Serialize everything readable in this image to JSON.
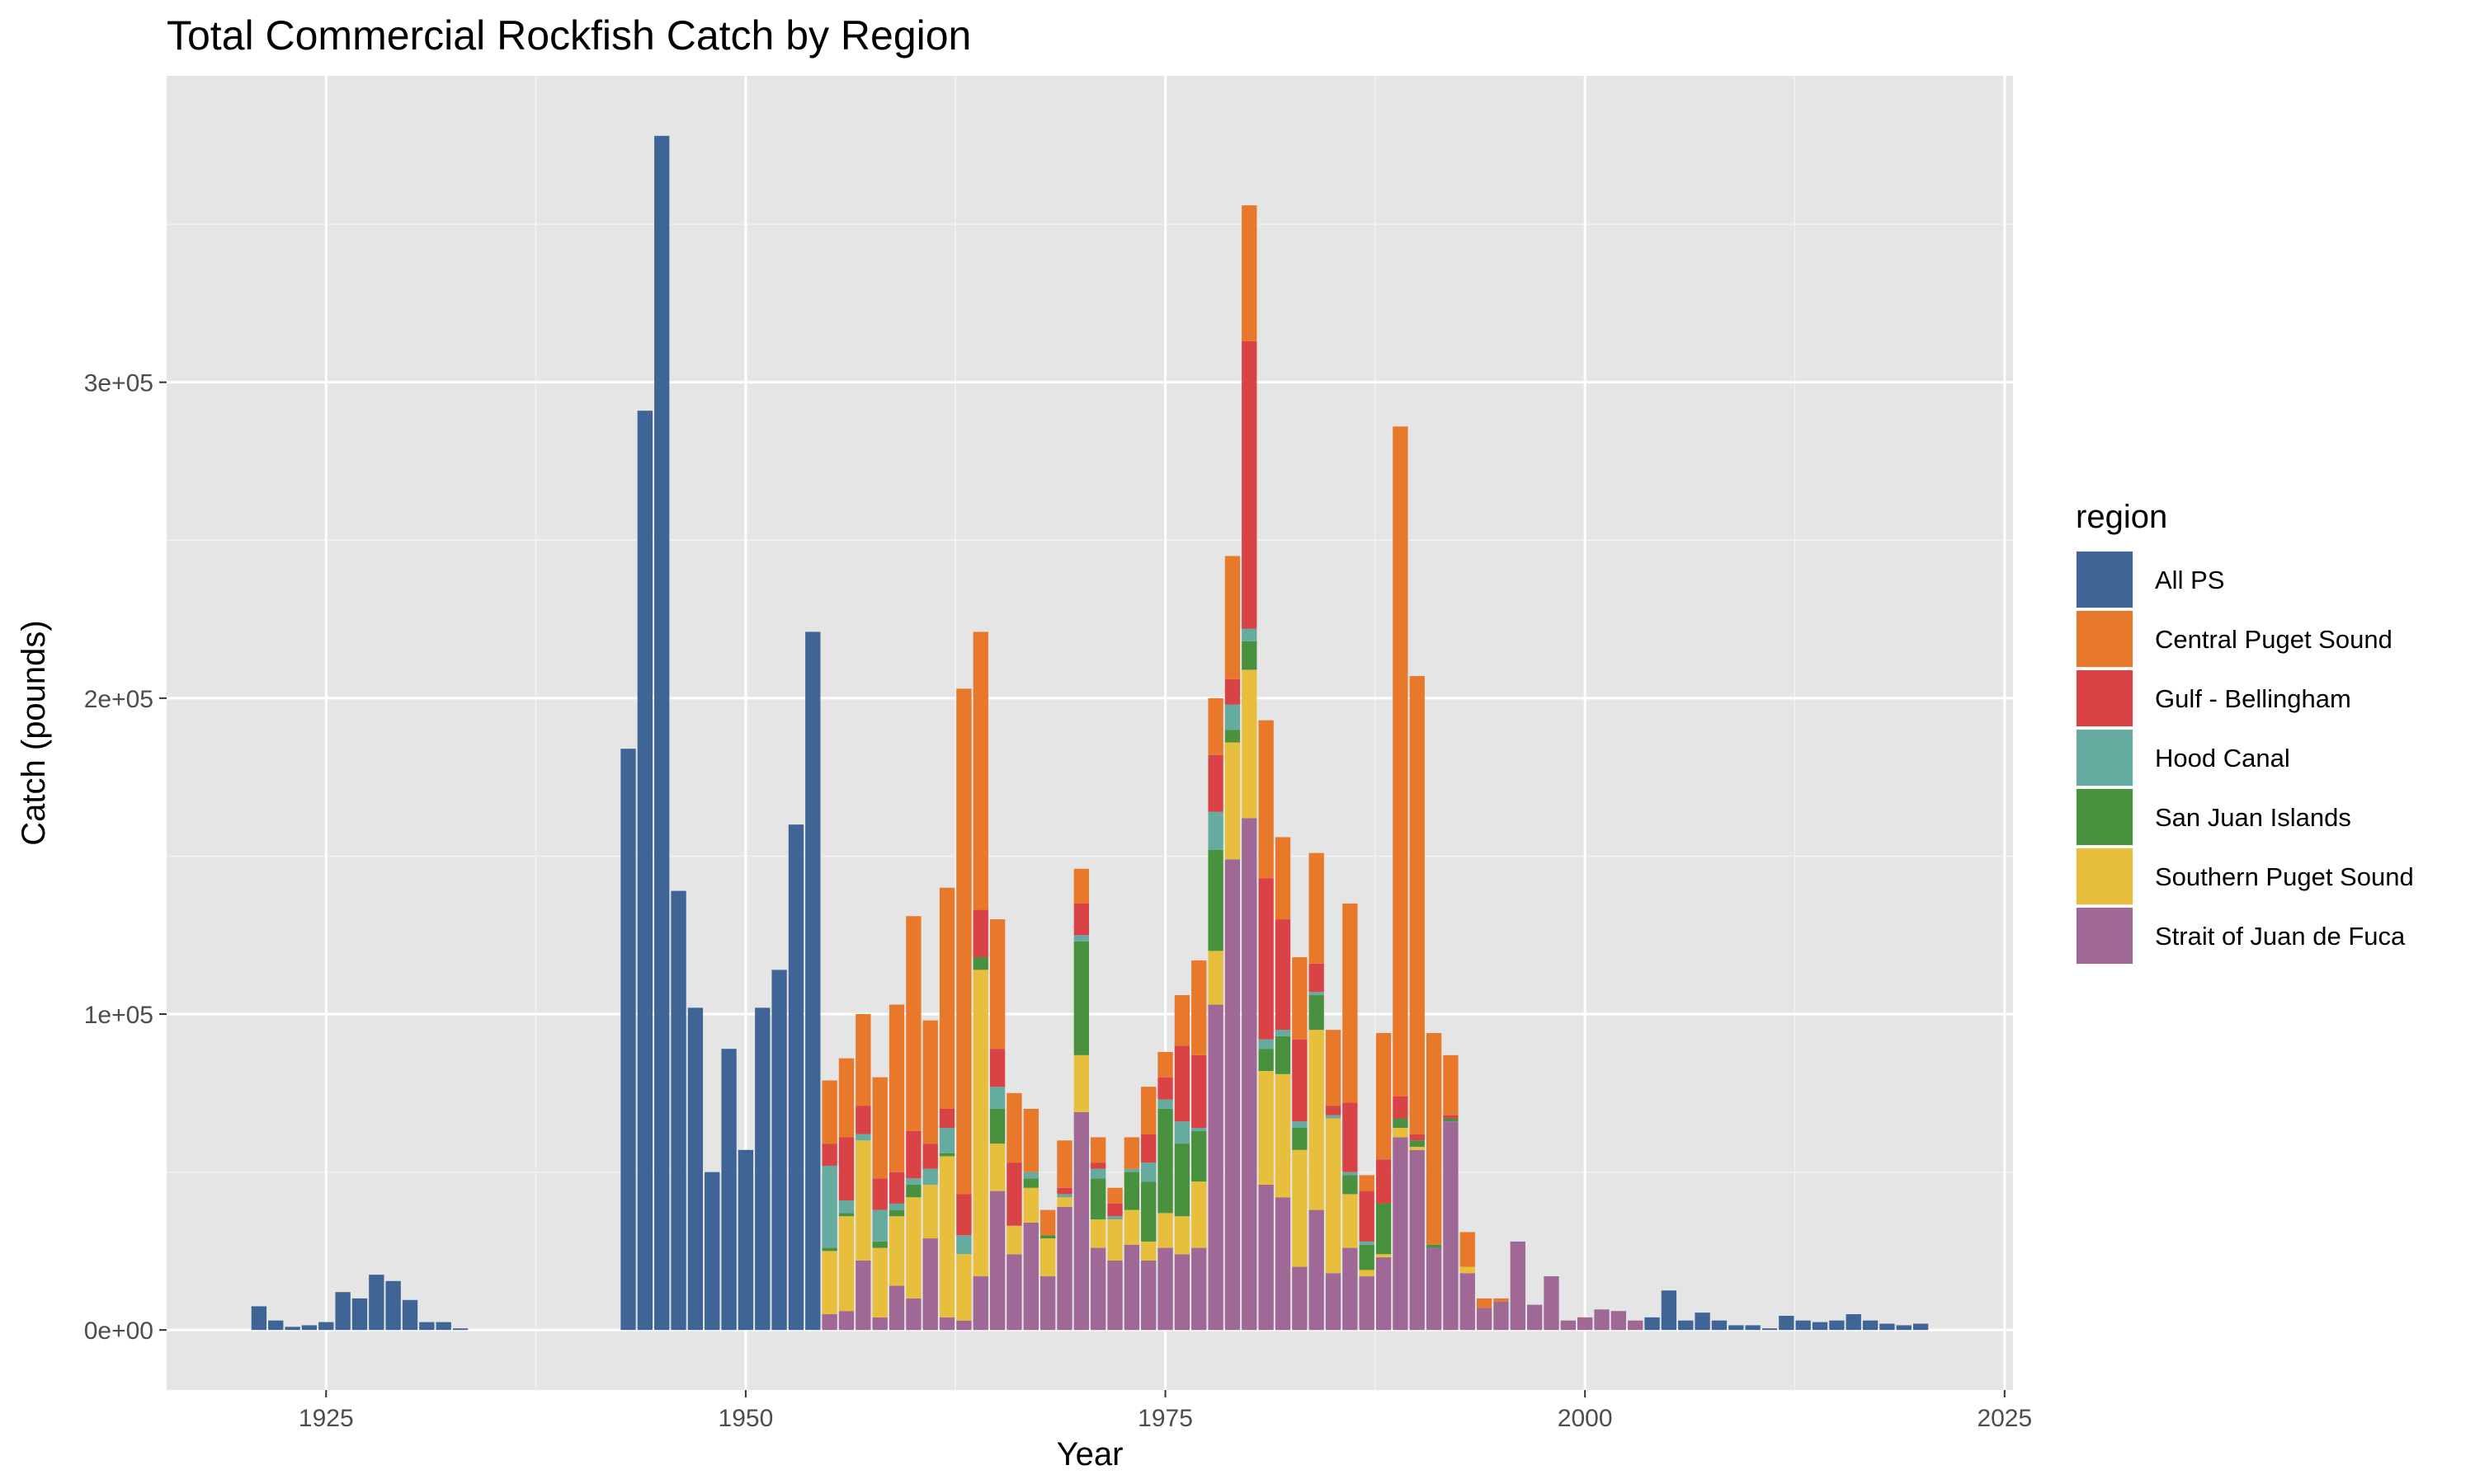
{
  "chart_data": {
    "type": "bar",
    "stacked": true,
    "title": "Total Commercial Rockfish Catch by Region",
    "xlabel": "Year",
    "ylabel": "Catch (pounds)",
    "xlim": [
      1915.5,
      2025.5
    ],
    "ylim": [
      -19000,
      397000
    ],
    "x_ticks": [
      {
        "value": 1925,
        "label": "1925"
      },
      {
        "value": 1950,
        "label": "1950"
      },
      {
        "value": 1975,
        "label": "1975"
      },
      {
        "value": 2000,
        "label": "2000"
      },
      {
        "value": 2025,
        "label": "2025"
      }
    ],
    "y_ticks": [
      {
        "value": 0,
        "label": "0e+00"
      },
      {
        "value": 100000,
        "label": "1e+05"
      },
      {
        "value": 200000,
        "label": "2e+05"
      },
      {
        "value": 300000,
        "label": "3e+05"
      }
    ],
    "grid": true,
    "legend": {
      "title": "region",
      "position": "right"
    },
    "series": [
      {
        "name": "All PS",
        "color": "#3f6496",
        "data": [
          [
            1921,
            7500
          ],
          [
            1922,
            3000
          ],
          [
            1923,
            1000
          ],
          [
            1924,
            1500
          ],
          [
            1925,
            2500
          ],
          [
            1926,
            12000
          ],
          [
            1927,
            10000
          ],
          [
            1928,
            17500
          ],
          [
            1929,
            15500
          ],
          [
            1930,
            9500
          ],
          [
            1931,
            2500
          ],
          [
            1932,
            2500
          ],
          [
            1933,
            500
          ],
          [
            1943,
            184000
          ],
          [
            1944,
            291000
          ],
          [
            1945,
            378000
          ],
          [
            1946,
            139000
          ],
          [
            1947,
            102000
          ],
          [
            1948,
            50000
          ],
          [
            1949,
            89000
          ],
          [
            1950,
            57000
          ],
          [
            1951,
            102000
          ],
          [
            1952,
            114000
          ],
          [
            1953,
            160000
          ],
          [
            1954,
            221000
          ],
          [
            2004,
            4000
          ],
          [
            2005,
            12500
          ],
          [
            2006,
            3000
          ],
          [
            2007,
            5500
          ],
          [
            2008,
            3000
          ],
          [
            2009,
            1500
          ],
          [
            2010,
            1500
          ],
          [
            2011,
            500
          ],
          [
            2012,
            4500
          ],
          [
            2013,
            3000
          ],
          [
            2014,
            2500
          ],
          [
            2015,
            3000
          ],
          [
            2016,
            5000
          ],
          [
            2017,
            3000
          ],
          [
            2018,
            2000
          ],
          [
            2019,
            1500
          ],
          [
            2020,
            2000
          ]
        ]
      },
      {
        "name": "Central Puget Sound",
        "color": "#e8782a",
        "data": [
          [
            1955,
            20000
          ],
          [
            1956,
            25000
          ],
          [
            1957,
            29000
          ],
          [
            1958,
            32000
          ],
          [
            1959,
            53000
          ],
          [
            1960,
            68000
          ],
          [
            1961,
            39000
          ],
          [
            1962,
            70000
          ],
          [
            1963,
            160000
          ],
          [
            1964,
            88000
          ],
          [
            1965,
            41000
          ],
          [
            1966,
            22000
          ],
          [
            1967,
            20000
          ],
          [
            1968,
            8000
          ],
          [
            1969,
            15000
          ],
          [
            1970,
            11000
          ],
          [
            1971,
            8000
          ],
          [
            1972,
            5000
          ],
          [
            1973,
            10000
          ],
          [
            1974,
            15000
          ],
          [
            1975,
            8000
          ],
          [
            1976,
            16000
          ],
          [
            1977,
            30000
          ],
          [
            1978,
            18000
          ],
          [
            1979,
            39000
          ],
          [
            1980,
            43000
          ],
          [
            1981,
            50000
          ],
          [
            1982,
            26000
          ],
          [
            1983,
            26000
          ],
          [
            1984,
            35000
          ],
          [
            1985,
            24000
          ],
          [
            1986,
            63000
          ],
          [
            1987,
            5000
          ],
          [
            1988,
            40000
          ],
          [
            1989,
            212000
          ],
          [
            1990,
            145000
          ],
          [
            1991,
            67000
          ],
          [
            1992,
            19000
          ],
          [
            1993,
            11000
          ],
          [
            1994,
            3000
          ],
          [
            1995,
            1000
          ]
        ]
      },
      {
        "name": "Gulf - Bellingham",
        "color": "#d94345",
        "data": [
          [
            1955,
            7000
          ],
          [
            1956,
            20000
          ],
          [
            1957,
            9000
          ],
          [
            1958,
            10000
          ],
          [
            1959,
            10000
          ],
          [
            1960,
            15000
          ],
          [
            1961,
            8000
          ],
          [
            1962,
            6000
          ],
          [
            1963,
            13000
          ],
          [
            1964,
            15000
          ],
          [
            1965,
            12000
          ],
          [
            1966,
            20000
          ],
          [
            1967,
            0
          ],
          [
            1968,
            0
          ],
          [
            1969,
            2000
          ],
          [
            1970,
            10000
          ],
          [
            1971,
            2000
          ],
          [
            1972,
            4000
          ],
          [
            1973,
            0
          ],
          [
            1974,
            9000
          ],
          [
            1975,
            7000
          ],
          [
            1976,
            24000
          ],
          [
            1977,
            23000
          ],
          [
            1978,
            18000
          ],
          [
            1979,
            8000
          ],
          [
            1980,
            91000
          ],
          [
            1981,
            51000
          ],
          [
            1982,
            35000
          ],
          [
            1983,
            26000
          ],
          [
            1984,
            9000
          ],
          [
            1985,
            3000
          ],
          [
            1986,
            22000
          ],
          [
            1987,
            16000
          ],
          [
            1988,
            14000
          ],
          [
            1989,
            7000
          ],
          [
            1990,
            2000
          ],
          [
            1992,
            1000
          ]
        ]
      },
      {
        "name": "Hood Canal",
        "color": "#66aba0",
        "data": [
          [
            1955,
            26000
          ],
          [
            1956,
            4000
          ],
          [
            1957,
            2000
          ],
          [
            1958,
            10000
          ],
          [
            1959,
            2000
          ],
          [
            1960,
            2000
          ],
          [
            1961,
            5000
          ],
          [
            1962,
            8000
          ],
          [
            1963,
            6000
          ],
          [
            1964,
            0
          ],
          [
            1965,
            7000
          ],
          [
            1966,
            0
          ],
          [
            1967,
            2000
          ],
          [
            1969,
            1000
          ],
          [
            1970,
            2000
          ],
          [
            1971,
            3000
          ],
          [
            1972,
            1000
          ],
          [
            1973,
            1000
          ],
          [
            1974,
            6000
          ],
          [
            1975,
            3000
          ],
          [
            1976,
            7000
          ],
          [
            1977,
            1000
          ],
          [
            1978,
            12000
          ],
          [
            1979,
            8000
          ],
          [
            1980,
            4000
          ],
          [
            1981,
            3000
          ],
          [
            1982,
            2000
          ],
          [
            1983,
            2000
          ],
          [
            1984,
            1000
          ],
          [
            1985,
            1000
          ],
          [
            1986,
            1000
          ],
          [
            1987,
            1000
          ]
        ]
      },
      {
        "name": "San Juan Islands",
        "color": "#4a913f",
        "data": [
          [
            1955,
            1000
          ],
          [
            1956,
            1000
          ],
          [
            1957,
            0
          ],
          [
            1958,
            2000
          ],
          [
            1959,
            2000
          ],
          [
            1960,
            4000
          ],
          [
            1961,
            0
          ],
          [
            1962,
            1000
          ],
          [
            1963,
            0
          ],
          [
            1964,
            4000
          ],
          [
            1965,
            11000
          ],
          [
            1966,
            0
          ],
          [
            1967,
            3000
          ],
          [
            1968,
            1000
          ],
          [
            1970,
            36000
          ],
          [
            1971,
            13000
          ],
          [
            1972,
            0
          ],
          [
            1973,
            12000
          ],
          [
            1974,
            19000
          ],
          [
            1975,
            33000
          ],
          [
            1976,
            23000
          ],
          [
            1977,
            16000
          ],
          [
            1978,
            32000
          ],
          [
            1979,
            4000
          ],
          [
            1980,
            9000
          ],
          [
            1981,
            7000
          ],
          [
            1982,
            12000
          ],
          [
            1983,
            7000
          ],
          [
            1984,
            11000
          ],
          [
            1985,
            0
          ],
          [
            1986,
            6000
          ],
          [
            1987,
            8000
          ],
          [
            1988,
            16000
          ],
          [
            1989,
            3000
          ],
          [
            1990,
            2000
          ],
          [
            1991,
            1000
          ],
          [
            1992,
            1000
          ]
        ]
      },
      {
        "name": "Southern Puget Sound",
        "color": "#e8bf3d",
        "data": [
          [
            1955,
            20000
          ],
          [
            1956,
            30000
          ],
          [
            1957,
            38000
          ],
          [
            1958,
            22000
          ],
          [
            1959,
            22000
          ],
          [
            1960,
            32000
          ],
          [
            1961,
            17000
          ],
          [
            1962,
            51000
          ],
          [
            1963,
            21000
          ],
          [
            1964,
            97000
          ],
          [
            1965,
            15000
          ],
          [
            1966,
            9000
          ],
          [
            1967,
            11000
          ],
          [
            1968,
            12000
          ],
          [
            1969,
            3000
          ],
          [
            1970,
            18000
          ],
          [
            1971,
            9000
          ],
          [
            1972,
            13000
          ],
          [
            1973,
            11000
          ],
          [
            1974,
            6000
          ],
          [
            1975,
            11000
          ],
          [
            1976,
            12000
          ],
          [
            1977,
            21000
          ],
          [
            1978,
            17000
          ],
          [
            1979,
            37000
          ],
          [
            1980,
            47000
          ],
          [
            1981,
            36000
          ],
          [
            1982,
            39000
          ],
          [
            1983,
            37000
          ],
          [
            1984,
            57000
          ],
          [
            1985,
            49000
          ],
          [
            1986,
            17000
          ],
          [
            1987,
            2000
          ],
          [
            1988,
            1000
          ],
          [
            1989,
            3000
          ],
          [
            1990,
            1000
          ],
          [
            1993,
            2000
          ]
        ]
      },
      {
        "name": "Strait of Juan de Fuca",
        "color": "#a06895",
        "data": [
          [
            1955,
            5000
          ],
          [
            1956,
            6000
          ],
          [
            1957,
            22000
          ],
          [
            1958,
            4000
          ],
          [
            1959,
            14000
          ],
          [
            1960,
            10000
          ],
          [
            1961,
            29000
          ],
          [
            1962,
            4000
          ],
          [
            1963,
            3000
          ],
          [
            1964,
            17000
          ],
          [
            1965,
            44000
          ],
          [
            1966,
            24000
          ],
          [
            1967,
            34000
          ],
          [
            1968,
            17000
          ],
          [
            1969,
            39000
          ],
          [
            1970,
            69000
          ],
          [
            1971,
            26000
          ],
          [
            1972,
            22000
          ],
          [
            1973,
            27000
          ],
          [
            1974,
            22000
          ],
          [
            1975,
            26000
          ],
          [
            1976,
            24000
          ],
          [
            1977,
            26000
          ],
          [
            1978,
            103000
          ],
          [
            1979,
            149000
          ],
          [
            1980,
            162000
          ],
          [
            1981,
            46000
          ],
          [
            1982,
            42000
          ],
          [
            1983,
            20000
          ],
          [
            1984,
            38000
          ],
          [
            1985,
            18000
          ],
          [
            1986,
            26000
          ],
          [
            1987,
            17000
          ],
          [
            1988,
            23000
          ],
          [
            1989,
            61000
          ],
          [
            1990,
            57000
          ],
          [
            1991,
            26000
          ],
          [
            1992,
            66000
          ],
          [
            1993,
            18000
          ],
          [
            1994,
            7000
          ],
          [
            1995,
            9000
          ],
          [
            1996,
            28000
          ],
          [
            1997,
            8000
          ],
          [
            1998,
            17000
          ],
          [
            1999,
            3000
          ],
          [
            2000,
            4000
          ],
          [
            2001,
            6500
          ],
          [
            2002,
            6000
          ],
          [
            2003,
            3000
          ]
        ]
      }
    ]
  }
}
